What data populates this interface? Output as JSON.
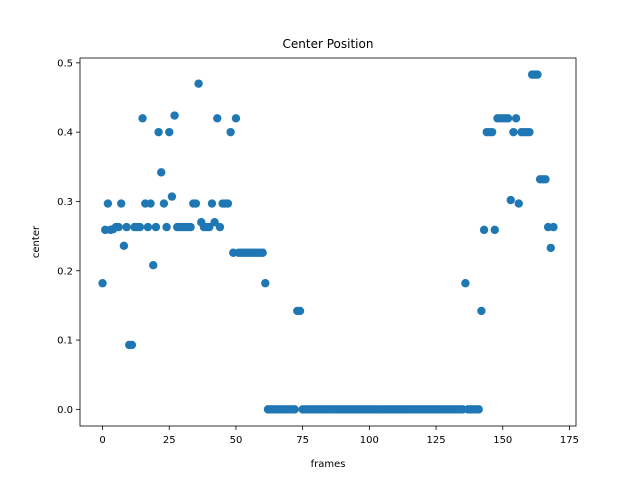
{
  "chart_data": {
    "type": "scatter",
    "title": "Center Position",
    "x_label": "frames",
    "y_label": "center",
    "color": "#1f77b4",
    "x": [
      0,
      1,
      2,
      3,
      4,
      5,
      6,
      7,
      8,
      9,
      10,
      11,
      12,
      13,
      14,
      15,
      16,
      17,
      18,
      19,
      20,
      21,
      22,
      23,
      24,
      25,
      26,
      27,
      28,
      29,
      30,
      31,
      32,
      33,
      34,
      35,
      36,
      37,
      38,
      39,
      40,
      41,
      42,
      43,
      44,
      45,
      46,
      47,
      48,
      49,
      50,
      51,
      52,
      53,
      54,
      55,
      56,
      57,
      58,
      59,
      60,
      61,
      62,
      63,
      64,
      65,
      66,
      67,
      68,
      69,
      70,
      71,
      72,
      73,
      74,
      75,
      76,
      77,
      78,
      79,
      80,
      81,
      82,
      83,
      84,
      85,
      86,
      87,
      88,
      89,
      90,
      91,
      92,
      93,
      94,
      95,
      96,
      97,
      98,
      99,
      100,
      101,
      102,
      103,
      104,
      105,
      106,
      107,
      108,
      109,
      110,
      111,
      112,
      113,
      114,
      115,
      116,
      117,
      118,
      119,
      120,
      121,
      122,
      123,
      124,
      125,
      126,
      127,
      128,
      129,
      130,
      131,
      132,
      133,
      134,
      135,
      136,
      137,
      138,
      139,
      140,
      141,
      142,
      143,
      144,
      145,
      146,
      147,
      148,
      149,
      150,
      151,
      152,
      153,
      154,
      155,
      156,
      157,
      158,
      159,
      160,
      161,
      162,
      163,
      164,
      165,
      166,
      167,
      168,
      169
    ],
    "values": [
      0.182,
      0.259,
      0.297,
      0.259,
      0.26,
      0.263,
      0.263,
      0.297,
      0.236,
      0.263,
      0.093,
      0.093,
      0.263,
      0.263,
      0.263,
      0.42,
      0.297,
      0.263,
      0.297,
      0.208,
      0.263,
      0.4,
      0.342,
      0.297,
      0.263,
      0.4,
      0.307,
      0.424,
      0.263,
      0.263,
      0.263,
      0.263,
      0.263,
      0.263,
      0.297,
      0.297,
      0.47,
      0.27,
      0.263,
      0.263,
      0.263,
      0.297,
      0.27,
      0.42,
      0.263,
      0.297,
      0.297,
      0.297,
      0.4,
      0.226,
      0.42,
      0.226,
      0.226,
      0.226,
      0.226,
      0.226,
      0.226,
      0.226,
      0.226,
      0.226,
      0.226,
      0.182,
      0,
      0,
      0,
      0,
      0,
      0,
      0,
      0,
      0,
      0,
      0,
      0.142,
      0.142,
      0,
      0,
      0,
      0,
      0,
      0,
      0,
      0,
      0,
      0,
      0,
      0,
      0,
      0,
      0,
      0,
      0,
      0,
      0,
      0,
      0,
      0,
      0,
      0,
      0,
      0,
      0,
      0,
      0,
      0,
      0,
      0,
      0,
      0,
      0,
      0,
      0,
      0,
      0,
      0,
      0,
      0,
      0,
      0,
      0,
      0,
      0,
      0,
      0,
      0,
      0,
      0,
      0,
      0,
      0,
      0,
      0,
      0,
      0,
      0,
      0,
      0.182,
      0,
      0,
      0,
      0,
      0,
      0.142,
      0.259,
      0.4,
      0.4,
      0.4,
      0.259,
      0.42,
      0.42,
      0.42,
      0.42,
      0.42,
      0.302,
      0.4,
      0.42,
      0.297,
      0.4,
      0.4,
      0.4,
      0.4,
      0.483,
      0.483,
      0.483,
      0.332,
      0.332,
      0.332,
      0.263,
      0.233,
      0.263
    ],
    "xlim": [
      -8.45,
      177.45
    ],
    "xticks": [
      0,
      25,
      50,
      75,
      100,
      125,
      150,
      175
    ],
    "ylim": [
      -0.024,
      0.507
    ],
    "yticks": [
      {
        "value": 0,
        "label": "0.0"
      },
      0.1,
      0.2,
      0.3,
      0.4,
      0.5
    ]
  }
}
